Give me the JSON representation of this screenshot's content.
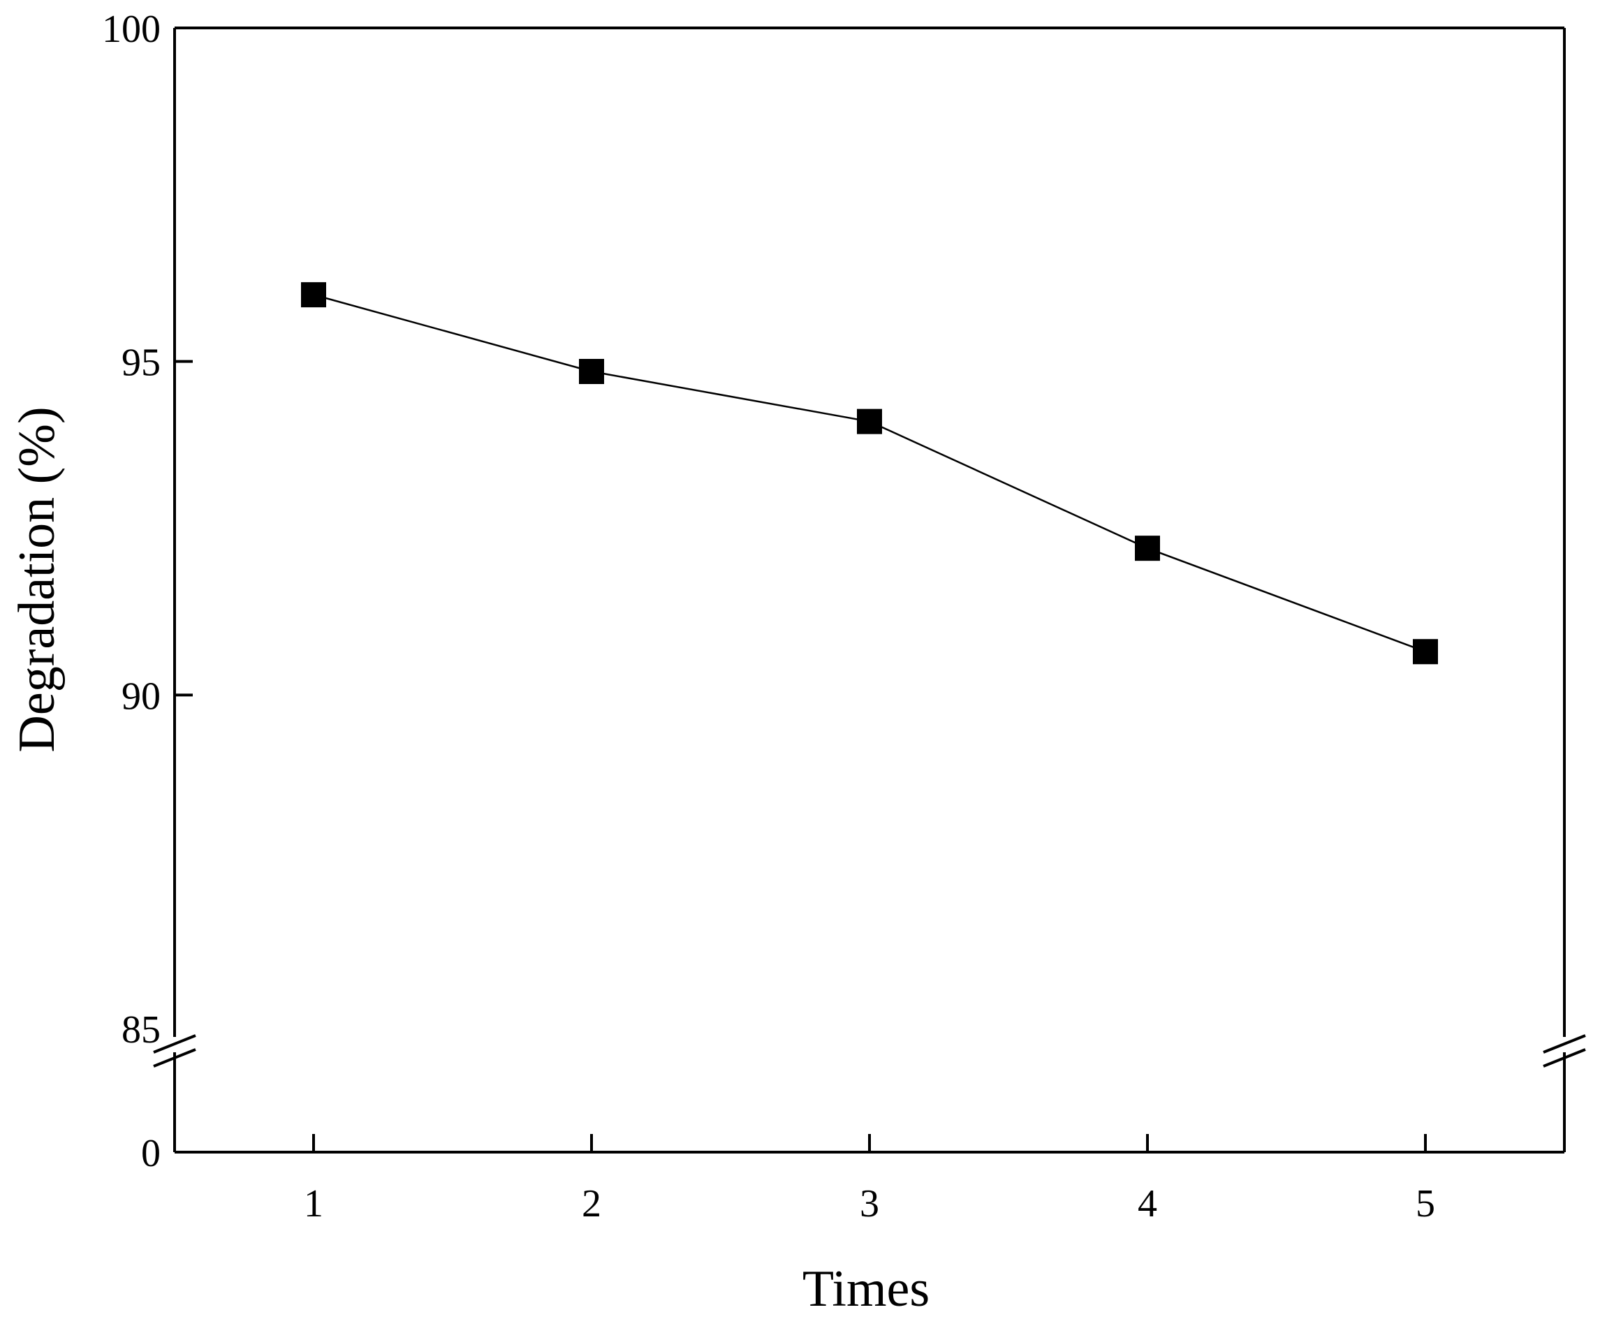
{
  "chart_data": {
    "type": "line",
    "xlabel": "Times",
    "ylabel": "Degradation (%)",
    "x": [
      1,
      2,
      3,
      4,
      5
    ],
    "x_ticks": [
      "1",
      "2",
      "3",
      "4",
      "5"
    ],
    "xlim": [
      0.5,
      5.5
    ],
    "y_ticks_upper": [
      "85",
      "90",
      "95",
      "100"
    ],
    "y_ticks_lower": [
      "0"
    ],
    "ylim_upper": [
      85,
      100
    ],
    "ylim_lower": [
      0,
      0
    ],
    "axis_break": true,
    "grid": false,
    "series": [
      {
        "values": [
          96.0,
          94.85,
          94.1,
          92.2,
          90.65
        ],
        "color": "#000000",
        "marker": "square"
      }
    ]
  }
}
